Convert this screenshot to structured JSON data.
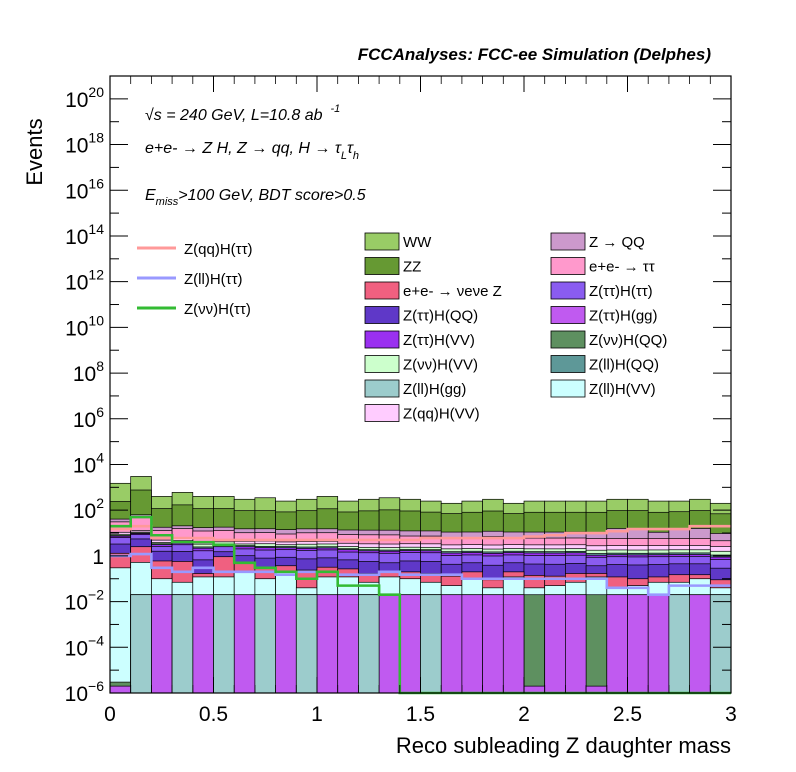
{
  "chart_data": {
    "type": "area",
    "title": "FCCAnalyses: FCC-ee Simulation (Delphes)",
    "xlabel": "Reco subleading Z daughter mass",
    "ylabel": "Events",
    "xlim": [
      0,
      3
    ],
    "ylim": [
      1e-06,
      1e+21
    ],
    "yscale": "log",
    "grid": false,
    "legend_position": "top",
    "annotations": {
      "energy": "√s = 240 GeV, L=10.8 ab",
      "energy_exp": "-1",
      "process_main": "e+e- → Z H, Z → qq, H → τ",
      "process_sub1": "L",
      "process_tau2": "τ",
      "process_sub2": "h",
      "cuts_prefix": "E",
      "cuts_sub": "miss",
      "cuts_rest": ">100 GeV, BDT score>0.5"
    },
    "x_ticks": [
      "0",
      "0.5",
      "1",
      "1.5",
      "2",
      "2.5",
      "3"
    ],
    "y_ticks": [
      {
        "exp": -6,
        "label": "10",
        "sup": "−6"
      },
      {
        "exp": -4,
        "label": "10",
        "sup": "−4"
      },
      {
        "exp": -2,
        "label": "10",
        "sup": "−2"
      },
      {
        "exp": 0,
        "label": "1",
        "sup": ""
      },
      {
        "exp": 2,
        "label": "10",
        "sup": "2"
      },
      {
        "exp": 4,
        "label": "10",
        "sup": "4"
      },
      {
        "exp": 6,
        "label": "10",
        "sup": "6"
      },
      {
        "exp": 8,
        "label": "10",
        "sup": "8"
      },
      {
        "exp": 10,
        "label": "10",
        "sup": "10"
      },
      {
        "exp": 12,
        "label": "10",
        "sup": "12"
      },
      {
        "exp": 14,
        "label": "10",
        "sup": "14"
      },
      {
        "exp": 16,
        "label": "10",
        "sup": "16"
      },
      {
        "exp": 18,
        "label": "10",
        "sup": "18"
      },
      {
        "exp": 20,
        "label": "10",
        "sup": "20"
      }
    ],
    "bins": [
      0,
      0.1,
      0.2,
      0.3,
      0.4,
      0.5,
      0.6,
      0.7,
      0.8,
      0.9,
      1.0,
      1.1,
      1.2,
      1.3,
      1.4,
      1.5,
      1.6,
      1.7,
      1.8,
      1.9,
      2.0,
      2.1,
      2.2,
      2.3,
      2.4,
      2.5,
      2.6,
      2.7,
      2.8,
      2.9,
      3.0
    ],
    "stack_totals": [
      1500,
      3000,
      400,
      600,
      400,
      400,
      300,
      350,
      250,
      300,
      400,
      250,
      300,
      350,
      300,
      250,
      200,
      250,
      300,
      200,
      250,
      250,
      250,
      250,
      300,
      300,
      250,
      250,
      300,
      200
    ],
    "stack_layers": [
      {
        "name": "Z(ll)H(gg)",
        "color": "#9ccccc",
        "values": [
          1e-06,
          0.02,
          1e-06,
          0.02,
          1e-06,
          0.02,
          1e-06,
          0.02,
          1e-06,
          0.02,
          1e-06,
          1e-06,
          0.02,
          1e-06,
          1e-06,
          0.02,
          1e-06,
          1e-06,
          1e-06,
          1e-06,
          1e-06,
          1e-06,
          1e-06,
          1e-06,
          1e-06,
          1e-06,
          1e-06,
          0.02,
          1e-06,
          0.02
        ]
      },
      {
        "name": "Z(ττ)H(gg)",
        "color": "#c05af0",
        "values": [
          1e-06,
          1e-06,
          0.02,
          1e-06,
          0.02,
          1e-06,
          0.02,
          1e-06,
          0.02,
          1e-06,
          0.02,
          0.02,
          1e-06,
          0.02,
          0.02,
          1e-06,
          0.02,
          0.02,
          0.02,
          0.02,
          1e-06,
          0.02,
          0.02,
          1e-06,
          0.02,
          0.02,
          0.02,
          1e-06,
          0.02,
          1e-06
        ]
      },
      {
        "name": "Z(νν)H(QQ)",
        "color": "#5e9060",
        "values": [
          1e-06,
          1e-06,
          1e-06,
          1e-06,
          1e-06,
          1e-06,
          1e-06,
          1e-06,
          1e-06,
          1e-06,
          1e-06,
          1e-06,
          1e-06,
          1e-06,
          1e-06,
          1e-06,
          1e-06,
          1e-06,
          1e-06,
          1e-06,
          0.02,
          1e-06,
          1e-06,
          0.02,
          1e-06,
          1e-06,
          1e-06,
          1e-06,
          1e-06,
          1e-06
        ]
      },
      {
        "name": "Z(ll)H(VV)",
        "color": "#ccffff",
        "values": [
          0.3,
          0.5,
          0.08,
          0.05,
          0.1,
          0.1,
          0.2,
          0.08,
          0.2,
          0.02,
          0.1,
          0.1,
          0.05,
          0.1,
          0.08,
          0.05,
          0.03,
          0.08,
          0.02,
          0.1,
          0.02,
          0.03,
          0.05,
          0.1,
          0.02,
          0.03,
          0.05,
          0.05,
          0.08,
          0.02
        ]
      },
      {
        "name": "e+e- → νeνe Z",
        "color": "#f06080",
        "values": [
          1,
          2,
          0.5,
          0.5,
          0.05,
          0.8,
          0.3,
          0.2,
          0.15,
          0.2,
          0.2,
          0.15,
          0.1,
          0.08,
          0.1,
          0.1,
          0.08,
          0.1,
          0.05,
          0.08,
          0.1,
          0.08,
          0.1,
          0.05,
          0.08,
          0.05,
          0.05,
          0.08,
          0.05,
          0.05
        ]
      },
      {
        "name": "Z(ττ)H(QQ)",
        "color": "#5f38c8",
        "values": [
          2,
          3,
          1,
          1,
          0.5,
          0.6,
          0.5,
          0.5,
          0.5,
          0.5,
          0.5,
          0.4,
          0.4,
          0.3,
          0.4,
          0.4,
          0.3,
          0.3,
          0.3,
          0.3,
          0.3,
          0.3,
          0.3,
          0.2,
          0.3,
          0.3,
          0.3,
          0.3,
          0.3,
          0.2
        ]
      },
      {
        "name": "Z(ττ)H(ττ)",
        "color": "#8a5cf0",
        "values": [
          3,
          3,
          1,
          1.5,
          1,
          1,
          1,
          1,
          1,
          1,
          1,
          0.8,
          0.8,
          0.8,
          0.8,
          0.8,
          0.6,
          0.6,
          0.6,
          0.6,
          0.6,
          0.6,
          0.6,
          0.5,
          0.5,
          0.5,
          0.5,
          0.5,
          0.5,
          0.4
        ]
      },
      {
        "name": "Z(ττ)H(VV)",
        "color": "#9a30f0",
        "values": [
          1,
          1,
          0.5,
          0.5,
          0.5,
          0.5,
          0.5,
          0.5,
          0.4,
          0.4,
          0.4,
          0.4,
          0.3,
          0.3,
          0.3,
          0.3,
          0.3,
          0.3,
          0.3,
          0.3,
          0.3,
          0.3,
          0.3,
          0.2,
          0.2,
          0.2,
          0.2,
          0.2,
          0.2,
          0.2
        ]
      },
      {
        "name": "Z(ll)H(QQ)",
        "color": "#5e9898",
        "values": [
          0.5,
          0.5,
          0.3,
          0.3,
          0.3,
          0.3,
          0.3,
          0.3,
          0.3,
          0.3,
          0.3,
          0.2,
          0.2,
          0.2,
          0.2,
          0.2,
          0.2,
          0.2,
          0.2,
          0.2,
          0.2,
          0.2,
          0.2,
          0.2,
          0.2,
          0.2,
          0.2,
          0.2,
          0.2,
          0.2
        ]
      },
      {
        "name": "Z(νν)H(VV)",
        "color": "#ccffcc",
        "values": [
          1,
          1,
          0.5,
          0.8,
          0.8,
          0.8,
          0.5,
          0.8,
          0.5,
          0.8,
          0.8,
          0.5,
          0.5,
          0.5,
          0.5,
          0.5,
          0.5,
          0.5,
          0.5,
          0.5,
          0.5,
          0.5,
          0.5,
          0.5,
          0.5,
          0.5,
          0.5,
          0.5,
          0.5,
          0.5
        ]
      },
      {
        "name": "Z(qq)H(VV)",
        "color": "#ffccff",
        "values": [
          2,
          2,
          1,
          1,
          1,
          1,
          1,
          1,
          1,
          1,
          1,
          1,
          1,
          1,
          1,
          1,
          1,
          1,
          1,
          1,
          1,
          1,
          1,
          1,
          1,
          1,
          1,
          1,
          1,
          1
        ]
      },
      {
        "name": "e+e- → ττ",
        "color": "#ff99cc",
        "values": [
          20,
          40,
          8,
          10,
          8,
          8,
          6,
          6,
          5,
          6,
          6,
          5,
          5,
          5,
          4,
          4,
          3,
          3,
          4,
          3,
          3,
          3,
          3,
          3,
          3,
          3,
          3,
          3,
          3,
          2
        ]
      },
      {
        "name": "Z → QQ",
        "color": "#cc99cc",
        "values": [
          10,
          10,
          5,
          5,
          5,
          5,
          5,
          5,
          5,
          5,
          5,
          5,
          5,
          5,
          5,
          5,
          5,
          5,
          5,
          5,
          5,
          5,
          5,
          5,
          10,
          10,
          5,
          10,
          10,
          5
        ]
      },
      {
        "name": "ZZ",
        "color": "#669933",
        "values": [
          200,
          700,
          100,
          150,
          100,
          100,
          80,
          80,
          70,
          80,
          100,
          70,
          80,
          90,
          80,
          70,
          60,
          70,
          80,
          60,
          70,
          70,
          70,
          70,
          80,
          80,
          70,
          70,
          80,
          60
        ]
      },
      {
        "name": "WW",
        "color": "#99cc66",
        "values": [
          1300,
          2300,
          300,
          450,
          300,
          300,
          220,
          270,
          180,
          220,
          300,
          180,
          220,
          260,
          220,
          180,
          140,
          180,
          220,
          140,
          180,
          180,
          180,
          180,
          220,
          220,
          180,
          180,
          220,
          140
        ]
      }
    ],
    "line_series": [
      {
        "name": "Z(qq)H(ττ)",
        "color": "#ff9999",
        "values": [
          15,
          20,
          6,
          6,
          6,
          5,
          5,
          5,
          5,
          5,
          5,
          5,
          5,
          5,
          5,
          6,
          6,
          6,
          6,
          6,
          7,
          8,
          10,
          10,
          12,
          15,
          15,
          15,
          20,
          20
        ]
      },
      {
        "name": "Z(ll)H(ττ)",
        "color": "#9999ff",
        "values": [
          1,
          1.2,
          0.3,
          0.2,
          0.3,
          0.2,
          0.2,
          0.2,
          0.15,
          0.2,
          0.2,
          0.15,
          0.15,
          0.2,
          0.15,
          0.15,
          0.15,
          0.1,
          0.1,
          0.1,
          0.1,
          0.1,
          0.1,
          0.1,
          0.04,
          0.04,
          0.02,
          0.05,
          0.05,
          0.05
        ]
      },
      {
        "name": "Z(νν)H(ττ)",
        "color": "#33bb33",
        "values": [
          20,
          50,
          8,
          4,
          4,
          3,
          0.5,
          0.3,
          0.2,
          0.1,
          0.2,
          0.05,
          0.05,
          0.02,
          1e-06,
          1e-06,
          1e-06,
          1e-06,
          1e-06,
          1e-06,
          1e-06,
          1e-06,
          1e-06,
          1e-06,
          1e-06,
          1e-06,
          1e-06,
          1e-06,
          1e-06,
          1e-06
        ]
      }
    ],
    "legend_columns": [
      [
        "WW",
        "ZZ",
        "e+e- → νeνe Z",
        "Z(ττ)H(QQ)",
        "Z(ττ)H(VV)",
        "Z(νν)H(VV)",
        "Z(ll)H(gg)",
        "Z(qq)H(VV)"
      ],
      [
        "Z → QQ",
        "e+e- → ττ",
        "Z(ττ)H(ττ)",
        "Z(ττ)H(gg)",
        "Z(νν)H(QQ)",
        "Z(ll)H(QQ)",
        "Z(ll)H(VV)"
      ]
    ],
    "line_legend": [
      "Z(qq)H(ττ)",
      "Z(ll)H(ττ)",
      "Z(νν)H(ττ)"
    ]
  }
}
